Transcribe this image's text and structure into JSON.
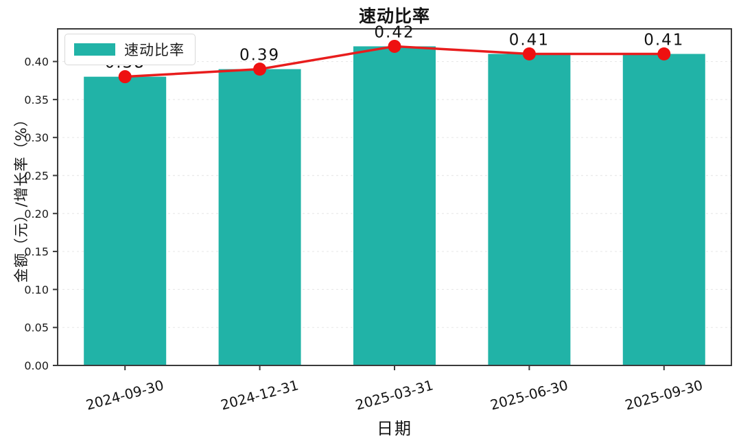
{
  "chart_data": {
    "type": "bar",
    "title": "速动比率",
    "xlabel": "日期",
    "ylabel": "金额（元）/增长率（%）",
    "categories": [
      "2024-09-30",
      "2024-12-31",
      "2025-03-31",
      "2025-06-30",
      "2025-09-30"
    ],
    "series": [
      {
        "name": "速动比率",
        "type": "bar",
        "color": "#21b3a7",
        "values": [
          0.38,
          0.39,
          0.42,
          0.41,
          0.41
        ]
      },
      {
        "name": "速动比率",
        "type": "line",
        "color": "#e81d1d",
        "marker_color": "#ee1111",
        "values": [
          0.38,
          0.39,
          0.42,
          0.41,
          0.41
        ]
      }
    ],
    "data_labels": [
      "0.38",
      "0.39",
      "0.42",
      "0.41",
      "0.41"
    ],
    "ytick_labels": [
      "0.00",
      "0.05",
      "0.10",
      "0.15",
      "0.20",
      "0.25",
      "0.30",
      "0.35",
      "0.40"
    ],
    "ytick_values": [
      0.0,
      0.05,
      0.1,
      0.15,
      0.2,
      0.25,
      0.3,
      0.35,
      0.4
    ],
    "ylim": [
      0,
      0.443
    ],
    "grid": {
      "axis": "y",
      "style": "dashed",
      "color": "#e9e9e9"
    },
    "x_tick_rotation_deg": -15,
    "legend": {
      "position": "upper-left",
      "label": "速动比率",
      "swatch_color": "#21b3a7"
    }
  }
}
